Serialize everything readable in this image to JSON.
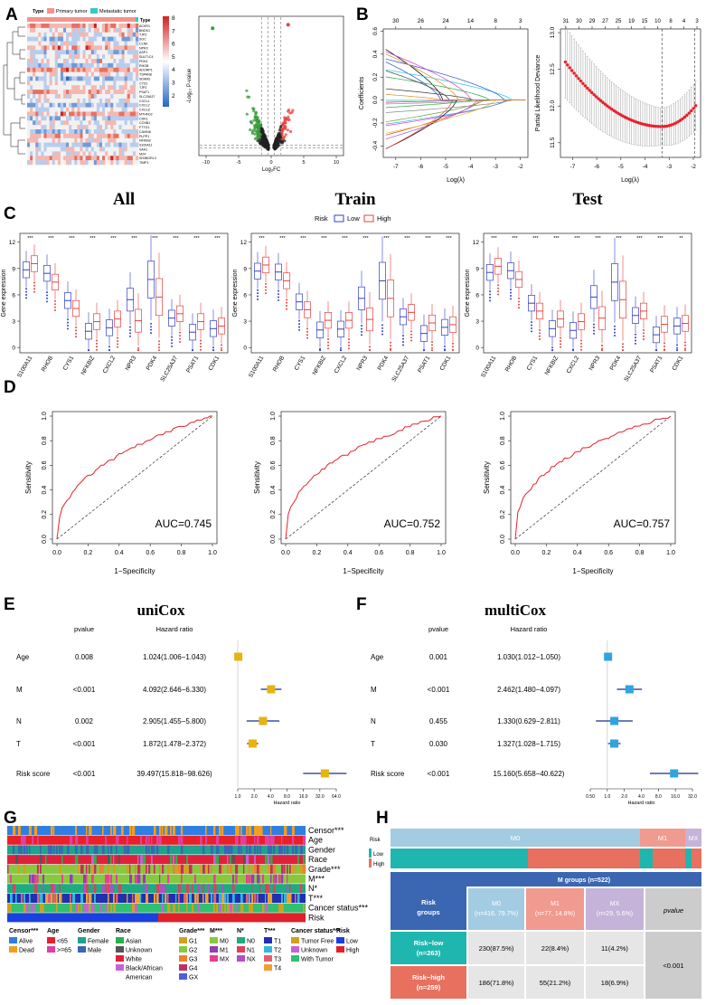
{
  "panel_letters": [
    "A",
    "B",
    "C",
    "D",
    "E",
    "F",
    "G",
    "H"
  ],
  "colors": {
    "primary_tumor": "#f4948c",
    "metastatic_tumor": "#37c8c8",
    "low": "#3340c8",
    "high": "#e8413c",
    "forest": "#e6b311",
    "forest_multi": "#2fa4e0",
    "h_header": "#3a66b2",
    "h_low": "#1fb6b0",
    "h_high": "#e8705f"
  },
  "panelA": {
    "legend_title": "Type",
    "legend_items": [
      "Primary tumor",
      "Metastatic tumor"
    ],
    "side_label": "Type",
    "colorbar_ticks": [
      "8",
      "7",
      "6",
      "5",
      "4",
      "3",
      "2"
    ],
    "genes": [
      "ACKR1",
      "BNDK1",
      "TJP2",
      "SOC",
      "CLNK",
      "NPR3",
      "ASP1",
      "SULT1C4",
      "PDK4",
      "RHOB",
      "ADORP1",
      "TSPAN8",
      "SDAM2",
      "CYS1",
      "TJP2",
      "PSAT1",
      "SLC25A37",
      "CXCL1",
      "CXCL2",
      "CXCL8",
      "MTHFD2",
      "CDK1",
      "CCNB1",
      "FTTG1",
      "CAVIN8",
      "PLPP1",
      "NFKBIZ",
      "S100A11",
      "SAA1",
      "MZ4",
      "SH3BGRL3",
      "TIMP1"
    ],
    "volcano_xlabel": "Log₂FC",
    "volcano_ylabel": "-Log₁₀ P-value",
    "volcano_xticks": [
      "-10",
      "-5",
      "0",
      "5",
      "10"
    ]
  },
  "panelB": {
    "coef_top_ticks": [
      "30",
      "26",
      "24",
      "14",
      "8",
      "3"
    ],
    "coef_ylabel": "Coefficients",
    "coef_yticks": [
      "0.6",
      "0.4",
      "0.2",
      "0.0",
      "-0.2",
      "-0.4"
    ],
    "xticks": [
      "-7",
      "-6",
      "-5",
      "-4",
      "-3",
      "-2"
    ],
    "xlabel": "Log(λ)",
    "dev_top_ticks": [
      "31",
      "30",
      "29",
      "27",
      "25",
      "19",
      "15",
      "10",
      "8",
      "4",
      "3"
    ],
    "dev_ylabel": "Partial Likelihood Deviance",
    "dev_yticks": [
      "13.0",
      "12.5",
      "12.0",
      "11.5"
    ]
  },
  "panelC": {
    "titles": [
      "All",
      "Train",
      "Test"
    ],
    "legend_title": "Risk",
    "legend_low": "Low",
    "legend_high": "High",
    "ylabel": "Gene expression",
    "yticks": [
      "12",
      "9",
      "6",
      "3",
      "0"
    ],
    "sig": "***",
    "genes": [
      "S100A11",
      "RHOB",
      "CYS1",
      "NFKBIZ",
      "CXCL2",
      "NPR3",
      "PDK4",
      "SLC25A37",
      "PSAT1",
      "CDK1"
    ],
    "low_medians": [
      8.7,
      8.6,
      5.2,
      2.0,
      2.1,
      5.6,
      7.6,
      3.5,
      1.6,
      2.3
    ],
    "high_medians": [
      9.4,
      7.6,
      4.3,
      3.1,
      3.1,
      3.2,
      5.6,
      4.0,
      2.8,
      2.6
    ],
    "test_last_sig": "**"
  },
  "panelD": {
    "xlabel": "1−Specificity",
    "ylabel": "Sensitivity",
    "ticks": [
      "0.0",
      "0.2",
      "0.4",
      "0.6",
      "0.8",
      "1.0"
    ],
    "auc": [
      "AUC=0.745",
      "AUC=0.752",
      "AUC=0.757"
    ]
  },
  "panelE": {
    "title": "uniCox",
    "pvalue_header": "pvalue",
    "hr_header": "Hazard ratio",
    "rows": [
      {
        "name": "Age",
        "p": "0.008",
        "hr": "1.024(1.006−1.043)",
        "est": 1.024,
        "lo": 1.006,
        "hi": 1.043
      },
      {
        "name": "M",
        "p": "<0.001",
        "hr": "4.092(2.646−6.330)",
        "est": 4.092,
        "lo": 2.646,
        "hi": 6.33
      },
      {
        "name": "N",
        "p": "0.002",
        "hr": "2.905(1.455−5.800)",
        "est": 2.905,
        "lo": 1.455,
        "hi": 5.8
      },
      {
        "name": "T",
        "p": "<0.001",
        "hr": "1.872(1.478−2.372)",
        "est": 1.872,
        "lo": 1.478,
        "hi": 2.372
      },
      {
        "name": "Risk score",
        "p": "<0.001",
        "hr": "39.497(15.818−98.626)",
        "est": 39.497,
        "lo": 15.818,
        "hi": 98.626
      }
    ],
    "axis_ticks": [
      "1.0",
      "2.0",
      "4.0",
      "8.0",
      "16.0",
      "32.0",
      "64.0"
    ],
    "axis_values": [
      1,
      2,
      4,
      8,
      16,
      32,
      64
    ],
    "axis_label": "Hazard ratio"
  },
  "panelF": {
    "title": "multiCox",
    "pvalue_header": "pvalue",
    "hr_header": "Hazard ratio",
    "rows": [
      {
        "name": "Age",
        "p": "0.001",
        "hr": "1.030(1.012−1.050)",
        "est": 1.03,
        "lo": 1.012,
        "hi": 1.05
      },
      {
        "name": "M",
        "p": "<0.001",
        "hr": "2.462(1.480−4.097)",
        "est": 2.462,
        "lo": 1.48,
        "hi": 4.097
      },
      {
        "name": "N",
        "p": "0.455",
        "hr": "1.330(0.629−2.811)",
        "est": 1.33,
        "lo": 0.629,
        "hi": 2.811
      },
      {
        "name": "T",
        "p": "0.030",
        "hr": "1.327(1.028−1.715)",
        "est": 1.327,
        "lo": 1.028,
        "hi": 1.715
      },
      {
        "name": "Risk score",
        "p": "<0.001",
        "hr": "15.160(5.658−40.622)",
        "est": 15.16,
        "lo": 5.658,
        "hi": 40.622
      }
    ],
    "axis_ticks": [
      "0.50",
      "1.0",
      "2.0",
      "4.0",
      "8.0",
      "16.0",
      "32.0"
    ],
    "axis_values": [
      0.5,
      1,
      2,
      4,
      8,
      16,
      32
    ],
    "axis_label": "Hazard ratio"
  },
  "panelG": {
    "track_labels": [
      "Censor***",
      "Age",
      "Gender",
      "Race",
      "Grade***",
      "M***",
      "N*",
      "T***",
      "Cancer status***",
      "Risk"
    ],
    "legend": [
      {
        "title": "Censor***",
        "items": [
          [
            "Alive",
            "#2f7fe0"
          ],
          [
            "Dead",
            "#f0a020"
          ]
        ]
      },
      {
        "title": "Age",
        "items": [
          [
            "<65",
            "#e8202a"
          ],
          [
            ">=65",
            "#e040a0"
          ]
        ]
      },
      {
        "title": "Gender",
        "items": [
          [
            "Female",
            "#1fa38c"
          ],
          [
            "Male",
            "#3a66b2"
          ]
        ]
      },
      {
        "title": "Race",
        "items": [
          [
            "Asian",
            "#28b050"
          ],
          [
            "Unknown",
            "#555555"
          ],
          [
            "White",
            "#e0203c"
          ],
          [
            "Black/African American",
            "#c860d8"
          ]
        ]
      },
      {
        "title": "Grade***",
        "items": [
          [
            "G1",
            "#d4a020"
          ],
          [
            "G2",
            "#88c840"
          ],
          [
            "G3",
            "#f08030"
          ],
          [
            "G4",
            "#c03060"
          ],
          [
            "GX",
            "#5060d0"
          ]
        ]
      },
      {
        "title": "M***",
        "items": [
          [
            "M0",
            "#88c840"
          ],
          [
            "M1",
            "#9040b0"
          ],
          [
            "MX",
            "#e84090"
          ]
        ]
      },
      {
        "title": "N*",
        "items": [
          [
            "N0",
            "#1faa80"
          ],
          [
            "N1",
            "#e04060"
          ],
          [
            "NX",
            "#b050c0"
          ]
        ]
      },
      {
        "title": "T***",
        "items": [
          [
            "T1",
            "#2030b0"
          ],
          [
            "T2",
            "#30b8e0"
          ],
          [
            "T3",
            "#e06070"
          ],
          [
            "T4",
            "#f0a030"
          ]
        ]
      },
      {
        "title": "Cancer status*** ",
        "items": [
          [
            "Tumor Free",
            "#d0a020"
          ],
          [
            "Unknown",
            "#c860d8"
          ],
          [
            "With Tumor",
            "#30c070"
          ]
        ]
      },
      {
        "title": "Risk",
        "items": [
          [
            "Low",
            "#1a40e0"
          ],
          [
            "High",
            "#e0202a"
          ]
        ]
      }
    ]
  },
  "panelH": {
    "risk_label": "Risk",
    "low_label": "Low",
    "high_label": "High",
    "bar_labels": [
      "M0",
      "M1",
      "MX"
    ],
    "table_header": "M groups (n=522)",
    "row_header": "Risk groups",
    "cols": [
      "M0\n(n=416, 79.7%)",
      "M1\n(n=77, 14.8%)",
      "MX\n(n=29, 5.6%)"
    ],
    "pvalue_label": "pvalue",
    "rows": [
      {
        "label": "Risk−low\n(n=263)",
        "cells": [
          "230(87.5%)",
          "22(8.4%)",
          "11(4.2%)"
        ]
      },
      {
        "label": "Risk−high\n(n=259)",
        "cells": [
          "186(71.8%)",
          "55(21.2%)",
          "18(6.9%)"
        ]
      }
    ],
    "pvalue": "<0.001"
  }
}
